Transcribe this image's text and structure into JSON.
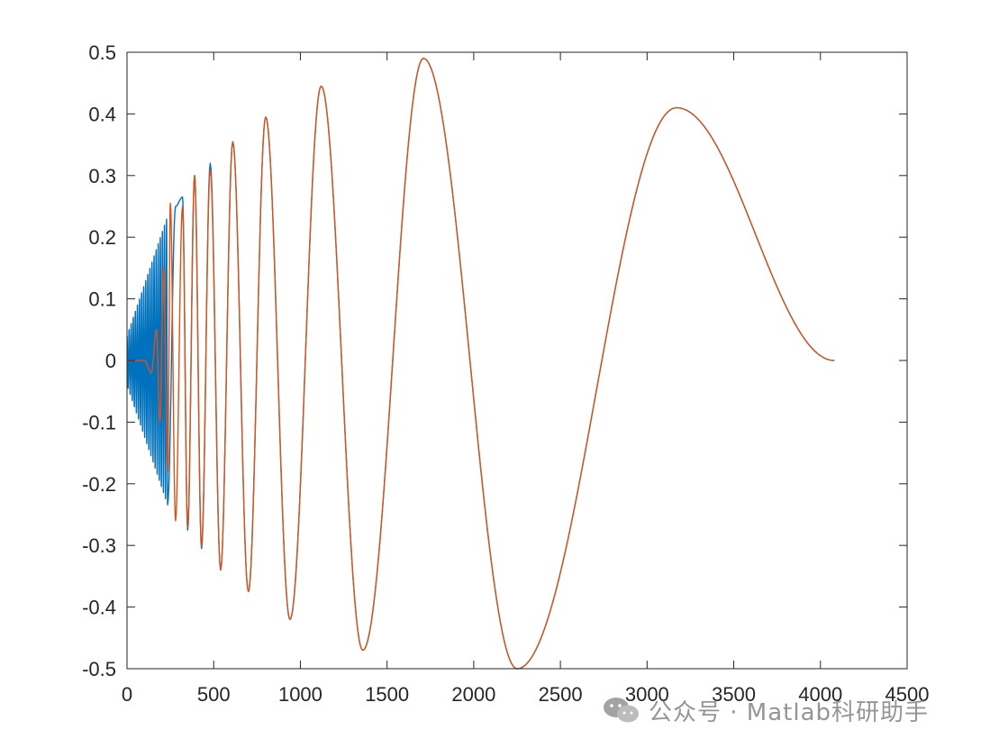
{
  "chart_data": {
    "type": "line",
    "title": "",
    "xlabel": "",
    "ylabel": "",
    "xlim": [
      0,
      4500
    ],
    "ylim": [
      -0.5,
      0.5
    ],
    "x_ticks": [
      0,
      500,
      1000,
      1500,
      2000,
      2500,
      3000,
      3500,
      4000,
      4500
    ],
    "y_ticks": [
      0.5,
      0.4,
      0.3,
      0.2,
      0.1,
      0,
      -0.1,
      -0.2,
      -0.3,
      -0.4,
      -0.5
    ],
    "x_tick_labels": [
      "0",
      "500",
      "1000",
      "1500",
      "2000",
      "2500",
      "3000",
      "3500",
      "4000",
      "4500"
    ],
    "y_tick_labels": [
      "0.5",
      "0.4",
      "0.3",
      "0.2",
      "0.1",
      "0",
      "-0.1",
      "-0.2",
      "-0.3",
      "-0.4",
      "-0.5"
    ],
    "grid": false,
    "box": true,
    "series": [
      {
        "color": "#0072BD",
        "x": [
          0,
          50,
          100,
          150,
          200,
          235,
          280,
          320,
          350,
          390,
          430,
          480,
          540,
          610,
          700,
          800,
          940,
          1120,
          1360,
          1710,
          2250,
          3170,
          4080
        ],
        "y": [
          0,
          0.1,
          0.15,
          0.19,
          0.22,
          0.235,
          0.25,
          0.265,
          -0.275,
          0.3,
          -0.305,
          0.32,
          -0.34,
          0.355,
          -0.375,
          0.395,
          -0.42,
          0.445,
          -0.47,
          0.49,
          -0.5,
          0.41,
          0
        ]
      },
      {
        "color": "#D95319",
        "x": [
          0,
          100,
          140,
          170,
          190,
          210,
          235,
          250,
          280,
          320,
          350,
          390,
          430,
          480,
          540,
          610,
          700,
          800,
          940,
          1120,
          1360,
          1710,
          2250,
          3170,
          4080
        ],
        "y": [
          0,
          0,
          -0.02,
          0.05,
          -0.1,
          0.15,
          -0.18,
          0.255,
          -0.26,
          0.25,
          -0.27,
          0.3,
          -0.3,
          0.31,
          -0.34,
          0.355,
          -0.375,
          0.395,
          -0.42,
          0.445,
          -0.47,
          0.49,
          -0.5,
          0.41,
          0
        ]
      }
    ]
  },
  "watermark": {
    "icon": "wechat-icon",
    "text": "公众号 · Matlab科研助手"
  }
}
